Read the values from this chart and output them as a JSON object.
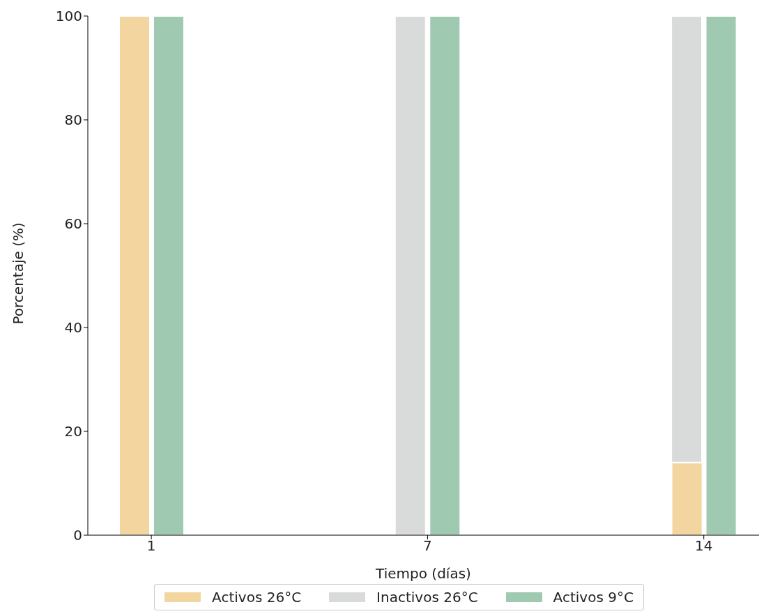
{
  "chart_data": {
    "type": "bar",
    "xlabel": "Tiempo (días)",
    "ylabel": "Porcentaje (%)",
    "categories": [
      "1",
      "7",
      "14"
    ],
    "series": [
      {
        "name": "Activos 26°C",
        "color": "#f3d59f",
        "values": [
          100,
          0,
          14
        ]
      },
      {
        "name": "Inactivos 26°C",
        "color": "#d9dbda",
        "values": [
          null,
          100,
          86
        ],
        "base": [
          null,
          0,
          14
        ]
      },
      {
        "name": "Activos 9°C",
        "color": "#9fc9b0",
        "values": [
          100,
          100,
          100
        ]
      }
    ],
    "ylim": [
      0,
      100
    ],
    "yticks": [
      0,
      20,
      40,
      60,
      80,
      100
    ],
    "grid": false,
    "legend": "bottom"
  }
}
